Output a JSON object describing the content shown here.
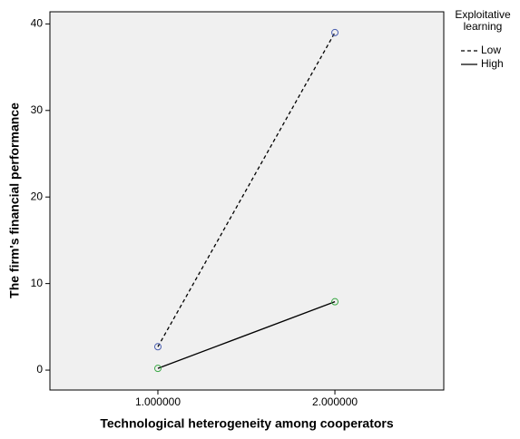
{
  "chart_data": {
    "type": "line",
    "x_label": "Technological heterogeneity among cooperators",
    "y_label": "The firm's financial performance",
    "legend_title": "Exploitative learning",
    "x": [
      1,
      2
    ],
    "series": [
      {
        "name": "Low",
        "color": "#000000",
        "marker_color": "#4a5fb0",
        "dash": "dashed",
        "values": [
          2.7,
          39
        ]
      },
      {
        "name": "High",
        "color": "#000000",
        "marker_color": "#3aa845",
        "dash": "solid",
        "values": [
          0.2,
          7.9
        ]
      }
    ],
    "xlim": [
      0.39,
      2.615
    ],
    "ylim": [
      -2.3,
      41.4
    ],
    "xticks": [
      {
        "value": 1,
        "label": "1.000000"
      },
      {
        "value": 2,
        "label": "2.000000"
      }
    ],
    "yticks": [
      0,
      10,
      20,
      30,
      40
    ],
    "plot_background": "#f0f0f0",
    "legend": "right"
  }
}
